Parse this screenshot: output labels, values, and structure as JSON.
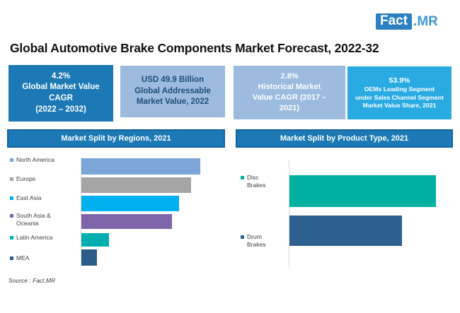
{
  "logo": {
    "fact": "Fact",
    "mr": ".MR",
    "box_color": "#2A80C0",
    "mr_color": "#3E9AD6"
  },
  "title": "Global Automotive Brake Components Market Forecast, 2022-32",
  "stat_boxes": [
    {
      "id": "global-cagr",
      "bg": "#1C79B5",
      "text_color": "#ffffff",
      "lines": [
        "4.2%",
        "Global Market Value",
        "CAGR",
        "(2022 – 2032)"
      ]
    },
    {
      "id": "addressable-value",
      "bg": "#9CBBDE",
      "text_color": "#1F4E79",
      "lines": [
        "USD 49.9 Billion",
        "Global Addressable",
        "Market Value, 2022"
      ]
    },
    {
      "id": "historical-cagr",
      "bg": "#9CBBDE",
      "text_color": "#ffffff",
      "lines": [
        "2.8%",
        "Historical Market",
        "Value CAGR (2017 –",
        "2021)"
      ]
    },
    {
      "id": "oem-share",
      "bg": "#29ABE2",
      "text_color": "#ffffff",
      "lines": [
        "53.9%",
        "OEMs Leading Segment",
        "under Sales Channel Segment",
        "Market Value Share, 2021"
      ]
    }
  ],
  "chart_data": [
    {
      "type": "bar",
      "orientation": "horizontal",
      "title": "Market Split by Regions, 2021",
      "categories": [
        "North America",
        "Europe",
        "East Asia",
        "South Asia & Oceania",
        "Latin America",
        "MEA"
      ],
      "values_relative": [
        100,
        92,
        82,
        76,
        23,
        13
      ],
      "value_scale": "relative bar length, largest bar = 100 (no numeric axis shown)",
      "colors": [
        "#7CA5D9",
        "#A5A5A5",
        "#00B0F0",
        "#7E64A8",
        "#00AEB0",
        "#2B5C8A"
      ],
      "legend_position": "left",
      "grid": false
    },
    {
      "type": "bar",
      "orientation": "horizontal",
      "title": "Market Split by Product Type, 2021",
      "categories": [
        "Disc Brakes",
        "Drum Brakes"
      ],
      "values_relative": [
        100,
        77
      ],
      "value_scale": "relative bar length, largest bar = 100 (no numeric axis shown)",
      "colors": [
        "#00B0A0",
        "#2D5F8F"
      ],
      "legend_position": "left",
      "grid": false
    }
  ],
  "source": "Source : Fact.MR"
}
